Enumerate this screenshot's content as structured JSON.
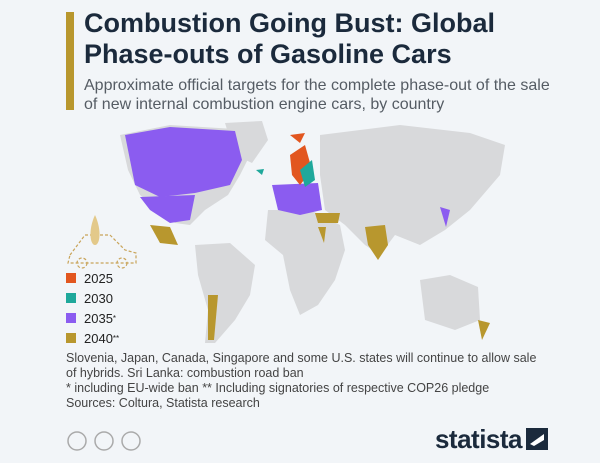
{
  "header": {
    "title": "Combustion Going Bust: Global Phase-outs of Gasoline Cars",
    "subtitle": "Approximate official targets for the complete phase-out of the sale of new internal combustion engine cars, by country"
  },
  "legend": [
    {
      "label": "2025",
      "color": "#e2561f"
    },
    {
      "label": "2030",
      "color": "#1fa89b"
    },
    {
      "label": "2035",
      "marker": "*",
      "color": "#8b5cf0"
    },
    {
      "label": "2040",
      "marker": "**",
      "color": "#b8972e"
    }
  ],
  "notes": [
    "Slovenia, Japan, Canada, Singapore and some U.S. states will continue to allow sale of hybrids. Sri Lanka: combustion road ban",
    "* including EU-wide ban ** Including signatories of respective COP26 pledge",
    "Sources: Coltura, Statista research"
  ],
  "brand": "statista"
}
